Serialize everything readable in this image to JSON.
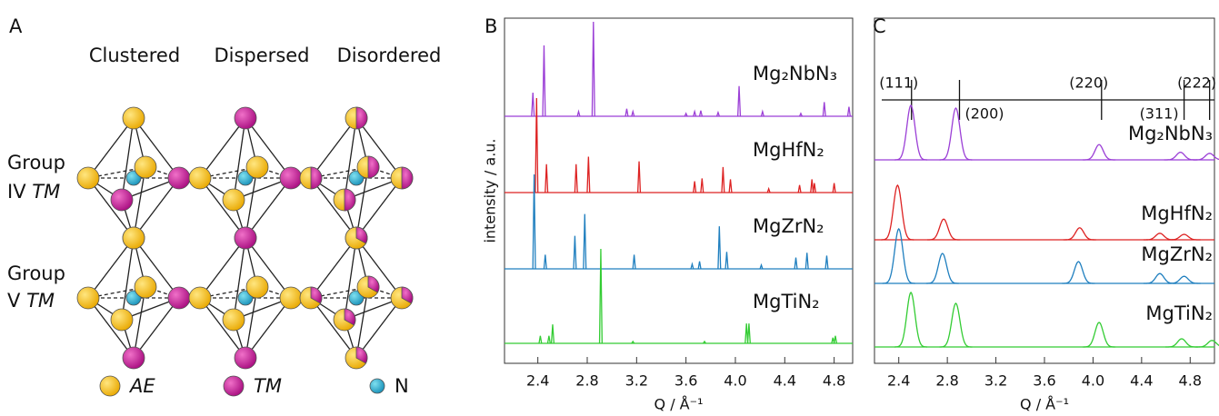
{
  "diagram": {
    "label": "A",
    "columns": [
      "Clustered",
      "Dispersed",
      "Disordered"
    ],
    "rows": [
      {
        "group": "Group",
        "level": "IV",
        "tm": "TM"
      },
      {
        "group": "Group",
        "level": "V",
        "tm": "TM"
      }
    ],
    "legend": [
      "AE",
      "TM",
      "N"
    ]
  },
  "chart_data": [
    {
      "type": "stick",
      "panel": "B",
      "xlabel": "Q / Å⁻¹",
      "ylabel": "intensity / a.u.",
      "xlim": [
        2.13,
        4.95
      ],
      "xticks": [
        2.4,
        2.8,
        3.2,
        3.6,
        {
          "value": 4,
          "label": "4.0"
        },
        4.4,
        4.8
      ],
      "ylim": [
        0,
        100
      ],
      "series": [
        {
          "name": "Mg₂NbN₃",
          "color": "#9b3fd6",
          "x": [
            2.36,
            2.45,
            2.73,
            2.85,
            3.12,
            3.17,
            3.6,
            3.67,
            3.72,
            3.86,
            4.03,
            4.22,
            4.53,
            4.72,
            4.92
          ],
          "values": [
            25,
            75,
            5,
            100,
            8,
            5,
            3,
            5,
            6,
            4,
            32,
            5,
            3,
            15,
            10
          ]
        },
        {
          "name": "MgHfN₂",
          "color": "#dd2222",
          "x": [
            2.39,
            2.47,
            2.71,
            2.81,
            3.22,
            3.67,
            3.73,
            3.9,
            3.96,
            4.27,
            4.52,
            4.62,
            4.64,
            4.8
          ],
          "values": [
            100,
            30,
            30,
            38,
            33,
            12,
            15,
            27,
            14,
            4,
            8,
            14,
            10,
            10
          ]
        },
        {
          "name": "MgZrN₂",
          "color": "#1f7fbf",
          "x": [
            2.37,
            2.46,
            2.7,
            2.78,
            3.18,
            3.65,
            3.71,
            3.87,
            3.93,
            4.21,
            4.49,
            4.58,
            4.74
          ],
          "values": [
            100,
            15,
            35,
            58,
            15,
            5,
            8,
            45,
            18,
            4,
            12,
            17,
            14
          ]
        },
        {
          "name": "MgTiN₂",
          "color": "#33cc33",
          "x": [
            2.42,
            2.49,
            2.52,
            2.91,
            3.17,
            3.75,
            4.09,
            4.11,
            4.79,
            4.81
          ],
          "values": [
            8,
            8,
            20,
            100,
            2,
            2,
            21,
            21,
            6,
            8
          ]
        }
      ]
    },
    {
      "type": "peak",
      "panel": "C",
      "xlabel": "Q / Å⁻¹",
      "xlim": [
        2.2,
        5.0
      ],
      "xticks": [
        2.4,
        2.8,
        3.2,
        3.6,
        {
          "value": 4,
          "label": "4.0"
        },
        4.4,
        4.8
      ],
      "ylim": [
        0,
        100
      ],
      "reflections": [
        {
          "value": 2.505,
          "label": "(111)"
        },
        {
          "value": 2.9,
          "label": "(200)"
        },
        {
          "value": 4.07,
          "label": "(220)"
        },
        {
          "value": 4.75,
          "label": "(311)"
        },
        {
          "value": 4.96,
          "label": "(222)"
        }
      ],
      "series": [
        {
          "name": "Mg₂NbN₃",
          "color": "#9b3fd6",
          "x": [
            2.5,
            2.87,
            4.05,
            4.72,
            4.96
          ],
          "values": [
            100,
            95,
            28,
            14,
            12
          ]
        },
        {
          "name": "MgHfN₂",
          "color": "#dd2222",
          "x": [
            2.39,
            2.77,
            3.89,
            4.55,
            4.75
          ],
          "values": [
            100,
            38,
            22,
            12,
            10
          ]
        },
        {
          "name": "MgZrN₂",
          "color": "#1f7fbf",
          "x": [
            2.4,
            2.76,
            3.88,
            4.55,
            4.75
          ],
          "values": [
            100,
            55,
            40,
            18,
            13
          ]
        },
        {
          "name": "MgTiN₂",
          "color": "#33cc33",
          "x": [
            2.5,
            2.87,
            4.05,
            4.73,
            4.98
          ],
          "values": [
            100,
            80,
            45,
            15,
            12
          ]
        }
      ]
    }
  ]
}
